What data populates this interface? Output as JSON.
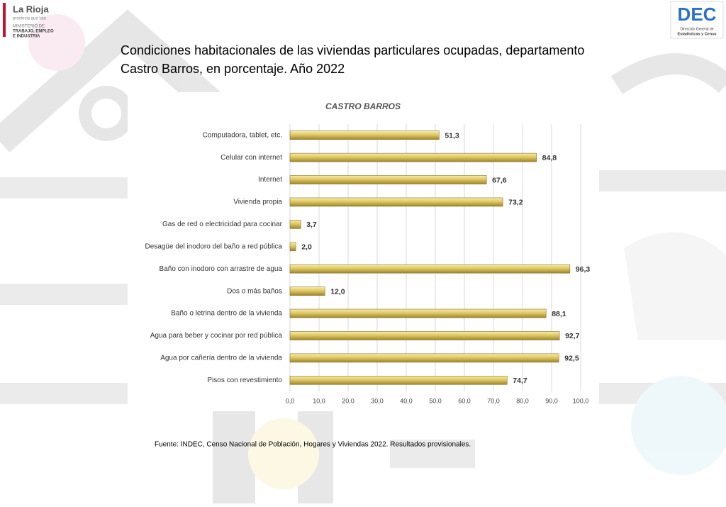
{
  "slide": {
    "title_line1": "Condiciones habitacionales de las viviendas particulares ocupadas, departamento",
    "title_line2": "Castro Barros, en porcentaje. Año 2022",
    "logo_left": {
      "brand": "La Rioja",
      "tagline": "provincia que late",
      "ministry_1": "MINISTERIO DE",
      "ministry_2": "TRABAJO, EMPLEO",
      "ministry_3": "E INDUSTRIA"
    },
    "logo_right": {
      "brand": "DEC",
      "name_1": "Dirección General de",
      "name_2": "Estadísticas y Censo"
    },
    "source": "Fuente: INDEC, Censo Nacional de Población, Hogares y Viviendas 2022. Resultados provisionales."
  },
  "chart_data": {
    "type": "hbar",
    "title": "CASTRO BARROS",
    "categories": [
      "Computadora, tablet, etc.",
      "Celular con internet",
      "Internet",
      "Vivienda propia",
      "Gas de red o electricidad para cocinar",
      "Desagüe del inodoro del baño a red pública",
      "Baño con inodoro con arrastre de agua",
      "Dos o más baños",
      "Baño o letrina dentro de la vivienda",
      "Agua para beber y cocinar por red pública",
      "Agua por cañería dentro de la vivienda",
      "Pisos con revestimiento"
    ],
    "values": [
      51.3,
      84.8,
      67.6,
      73.2,
      3.7,
      2.0,
      96.3,
      12.0,
      88.1,
      92.7,
      92.5,
      74.7
    ],
    "value_labels": [
      "51,3",
      "84,8",
      "67,6",
      "73,2",
      "3,7",
      "2,0",
      "96,3",
      "12,0",
      "88,1",
      "92,7",
      "92,5",
      "74,7"
    ],
    "color": "#e0c860",
    "xlim": [
      0,
      100
    ],
    "xticks": [
      {
        "value": 0,
        "label": "0,0"
      },
      {
        "value": 10,
        "label": "10,0"
      },
      {
        "value": 20,
        "label": "20,0"
      },
      {
        "value": 30,
        "label": "30,0"
      },
      {
        "value": 40,
        "label": "40,0"
      },
      {
        "value": 50,
        "label": "50,0"
      },
      {
        "value": 60,
        "label": "60,0"
      },
      {
        "value": 70,
        "label": "70,0"
      },
      {
        "value": 80,
        "label": "80,0"
      },
      {
        "value": 90,
        "label": "90,0"
      },
      {
        "value": 100,
        "label": "100,0"
      }
    ],
    "grid": true
  }
}
